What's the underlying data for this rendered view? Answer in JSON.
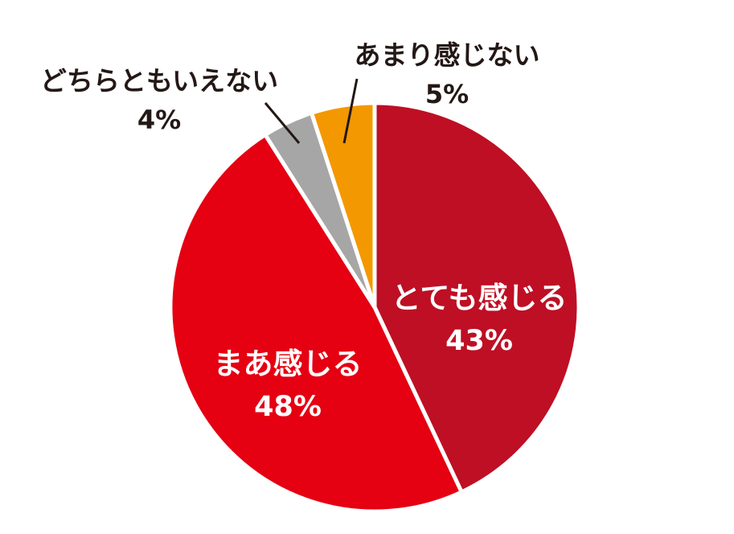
{
  "chart_data": {
    "type": "pie",
    "start_angle_deg": 0,
    "direction": "clockwise",
    "slices": [
      {
        "label": "とても感じる",
        "value": 43,
        "value_label": "43%",
        "color": "#BE0F24",
        "label_color": "#FFFFFF"
      },
      {
        "label": "まあ感じる",
        "value": 48,
        "value_label": "48%",
        "color": "#E50012",
        "label_color": "#FFFFFF"
      },
      {
        "label": "どちらともいえない",
        "value": 4,
        "value_label": "4%",
        "color": "#A6A6A6",
        "label_color": "#231815"
      },
      {
        "label": "あまり感じない",
        "value": 5,
        "value_label": "5%",
        "color": "#F39800",
        "label_color": "#231815"
      }
    ],
    "separator_color": "#FFFFFF",
    "leader_line_color": "#231815"
  }
}
